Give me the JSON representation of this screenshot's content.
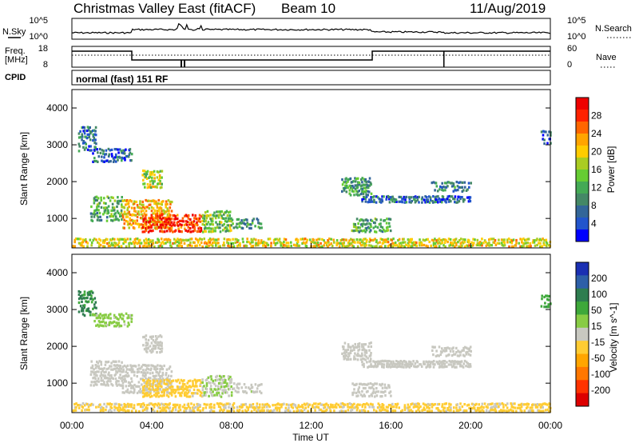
{
  "header": {
    "title": "Christmas Valley East (fitACF)",
    "beam": "Beam 10",
    "date": "11/Aug/2019"
  },
  "side_labels": {
    "nsky": "N.Sky",
    "nsearch": "N.Search",
    "freq": "Freq.",
    "freq_unit": "[MHz]",
    "nave": "Nave",
    "cpid": "CPID",
    "cpid_value": "normal (fast) 151 RF"
  },
  "noise_axis": {
    "left_ticks": [
      "10^5",
      "10^0"
    ],
    "right_ticks": [
      "10^5",
      "10^0"
    ]
  },
  "freq_axis": {
    "left_ticks": [
      "18",
      "8"
    ],
    "right_ticks": [
      "60",
      "0"
    ]
  },
  "x_axis": {
    "label": "Time UT",
    "ticks": [
      "00:00",
      "04:00",
      "08:00",
      "12:00",
      "16:00",
      "20:00",
      "00:00"
    ]
  },
  "colors": {
    "power_scale": [
      "#0000ff",
      "#2255cc",
      "#336699",
      "#448866",
      "#44aa55",
      "#66cc33",
      "#aacc22",
      "#ffcc00",
      "#ffa500",
      "#ff6600",
      "#ff2200",
      "#ee0000"
    ],
    "velocity_scale": [
      "#1a2fb3",
      "#2d5fa8",
      "#2e7d4f",
      "#3ea83a",
      "#88cc44",
      "#c8c8c0",
      "#ffcc33",
      "#ffa500",
      "#ff7700",
      "#ff3300",
      "#dd0000"
    ]
  },
  "chart_data": [
    {
      "type": "heatmap",
      "name": "power",
      "ylabel": "Slant Range [km]",
      "xlabel": "",
      "y_ticks": [
        "4000",
        "3000",
        "2000",
        "1000"
      ],
      "ylim": [
        200,
        4500
      ],
      "colorbar": {
        "label": "Power [dB]",
        "ticks": [
          "28",
          "24",
          "20",
          "16",
          "12",
          "8",
          "4"
        ],
        "range": [
          0,
          30
        ]
      },
      "regions": [
        {
          "t": [
            0.3,
            1.2
          ],
          "r": [
            2800,
            3500
          ],
          "v": 7
        },
        {
          "t": [
            1.0,
            3.0
          ],
          "r": [
            2500,
            2900
          ],
          "v": 6
        },
        {
          "t": [
            0.9,
            2.5
          ],
          "r": [
            900,
            1600
          ],
          "v": 12
        },
        {
          "t": [
            2.5,
            5.0
          ],
          "r": [
            700,
            1500
          ],
          "v": 20
        },
        {
          "t": [
            3.5,
            6.5
          ],
          "r": [
            600,
            1100
          ],
          "v": 27
        },
        {
          "t": [
            6.5,
            8.0
          ],
          "r": [
            600,
            1200
          ],
          "v": 14
        },
        {
          "t": [
            8.0,
            9.5
          ],
          "r": [
            700,
            1000
          ],
          "v": 10
        },
        {
          "t": [
            3.5,
            4.5
          ],
          "r": [
            1800,
            2300
          ],
          "v": 16
        },
        {
          "t": [
            13.5,
            15.0
          ],
          "r": [
            1600,
            2100
          ],
          "v": 10
        },
        {
          "t": [
            14.5,
            20.0
          ],
          "r": [
            1400,
            1600
          ],
          "v": 6
        },
        {
          "t": [
            18.0,
            20.0
          ],
          "r": [
            1700,
            2000
          ],
          "v": 8
        },
        {
          "t": [
            14.0,
            16.0
          ],
          "r": [
            600,
            1000
          ],
          "v": 11
        },
        {
          "t": [
            23.5,
            24.0
          ],
          "r": [
            3000,
            3400
          ],
          "v": 6
        },
        {
          "t": [
            0.0,
            24.0
          ],
          "r": [
            200,
            450
          ],
          "v": 18
        }
      ]
    },
    {
      "type": "heatmap",
      "name": "velocity",
      "ylabel": "Slant Range [km]",
      "xlabel": "Time UT",
      "y_ticks": [
        "4000",
        "3000",
        "2000",
        "1000"
      ],
      "ylim": [
        200,
        4500
      ],
      "colorbar": {
        "label": "Velocity [m s^-1]",
        "ticks": [
          "200",
          "100",
          "50",
          "15",
          "-15",
          "-50",
          "-100",
          "-200"
        ],
        "range": [
          -250,
          250
        ]
      },
      "regions": [
        {
          "t": [
            0.3,
            1.2
          ],
          "r": [
            2800,
            3500
          ],
          "v": 120
        },
        {
          "t": [
            1.0,
            3.0
          ],
          "r": [
            2500,
            2900
          ],
          "v": 40
        },
        {
          "t": [
            0.9,
            2.5
          ],
          "r": [
            900,
            1600
          ],
          "v": 0
        },
        {
          "t": [
            2.5,
            5.0
          ],
          "r": [
            700,
            1500
          ],
          "v": 0
        },
        {
          "t": [
            3.5,
            6.5
          ],
          "r": [
            600,
            1100
          ],
          "v": -40
        },
        {
          "t": [
            6.5,
            8.0
          ],
          "r": [
            600,
            1200
          ],
          "v": 20
        },
        {
          "t": [
            8.0,
            9.5
          ],
          "r": [
            700,
            1000
          ],
          "v": 5
        },
        {
          "t": [
            3.5,
            4.5
          ],
          "r": [
            1800,
            2300
          ],
          "v": 0
        },
        {
          "t": [
            13.5,
            15.0
          ],
          "r": [
            1600,
            2100
          ],
          "v": 0
        },
        {
          "t": [
            14.5,
            20.0
          ],
          "r": [
            1400,
            1600
          ],
          "v": 0
        },
        {
          "t": [
            18.0,
            20.0
          ],
          "r": [
            1700,
            2000
          ],
          "v": 0
        },
        {
          "t": [
            14.0,
            16.0
          ],
          "r": [
            600,
            1000
          ],
          "v": 0
        },
        {
          "t": [
            23.5,
            24.0
          ],
          "r": [
            3000,
            3400
          ],
          "v": 100
        },
        {
          "t": [
            0.0,
            24.0
          ],
          "r": [
            200,
            450
          ],
          "v": -35
        }
      ]
    }
  ]
}
